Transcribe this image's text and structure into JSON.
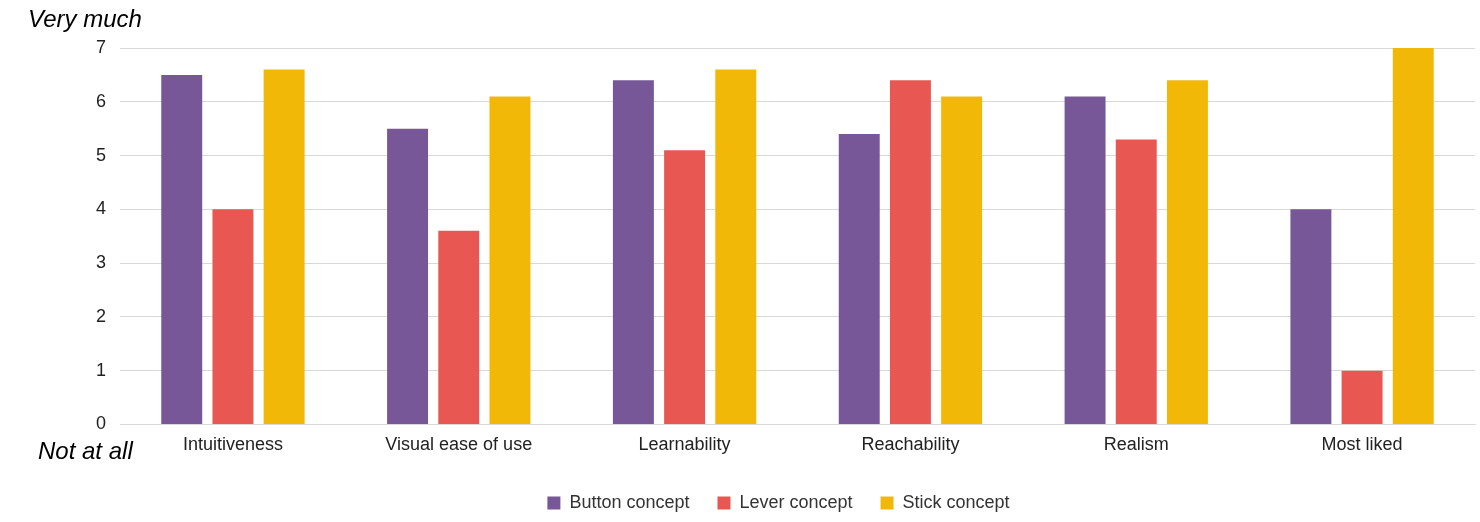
{
  "chart_data": {
    "type": "bar",
    "categories": [
      "Intuitiveness",
      "Visual ease of use",
      "Learnability",
      "Reachability",
      "Realism",
      "Most liked"
    ],
    "series": [
      {
        "name": "Button concept",
        "color": "#775797",
        "values": [
          6.5,
          5.5,
          6.4,
          5.4,
          6.1,
          4.0
        ]
      },
      {
        "name": "Lever concept",
        "color": "#e85752",
        "values": [
          4.0,
          3.6,
          5.1,
          6.4,
          5.3,
          1.0
        ]
      },
      {
        "name": "Stick concept",
        "color": "#f2b807",
        "values": [
          6.6,
          6.1,
          6.6,
          6.1,
          6.4,
          7.0
        ]
      }
    ],
    "ylim": [
      0,
      7
    ],
    "yticks": [
      0,
      1,
      2,
      3,
      4,
      5,
      6,
      7
    ],
    "grid": "y",
    "legend": "bottom",
    "annotations": [
      "Very much",
      "Not at all"
    ]
  }
}
